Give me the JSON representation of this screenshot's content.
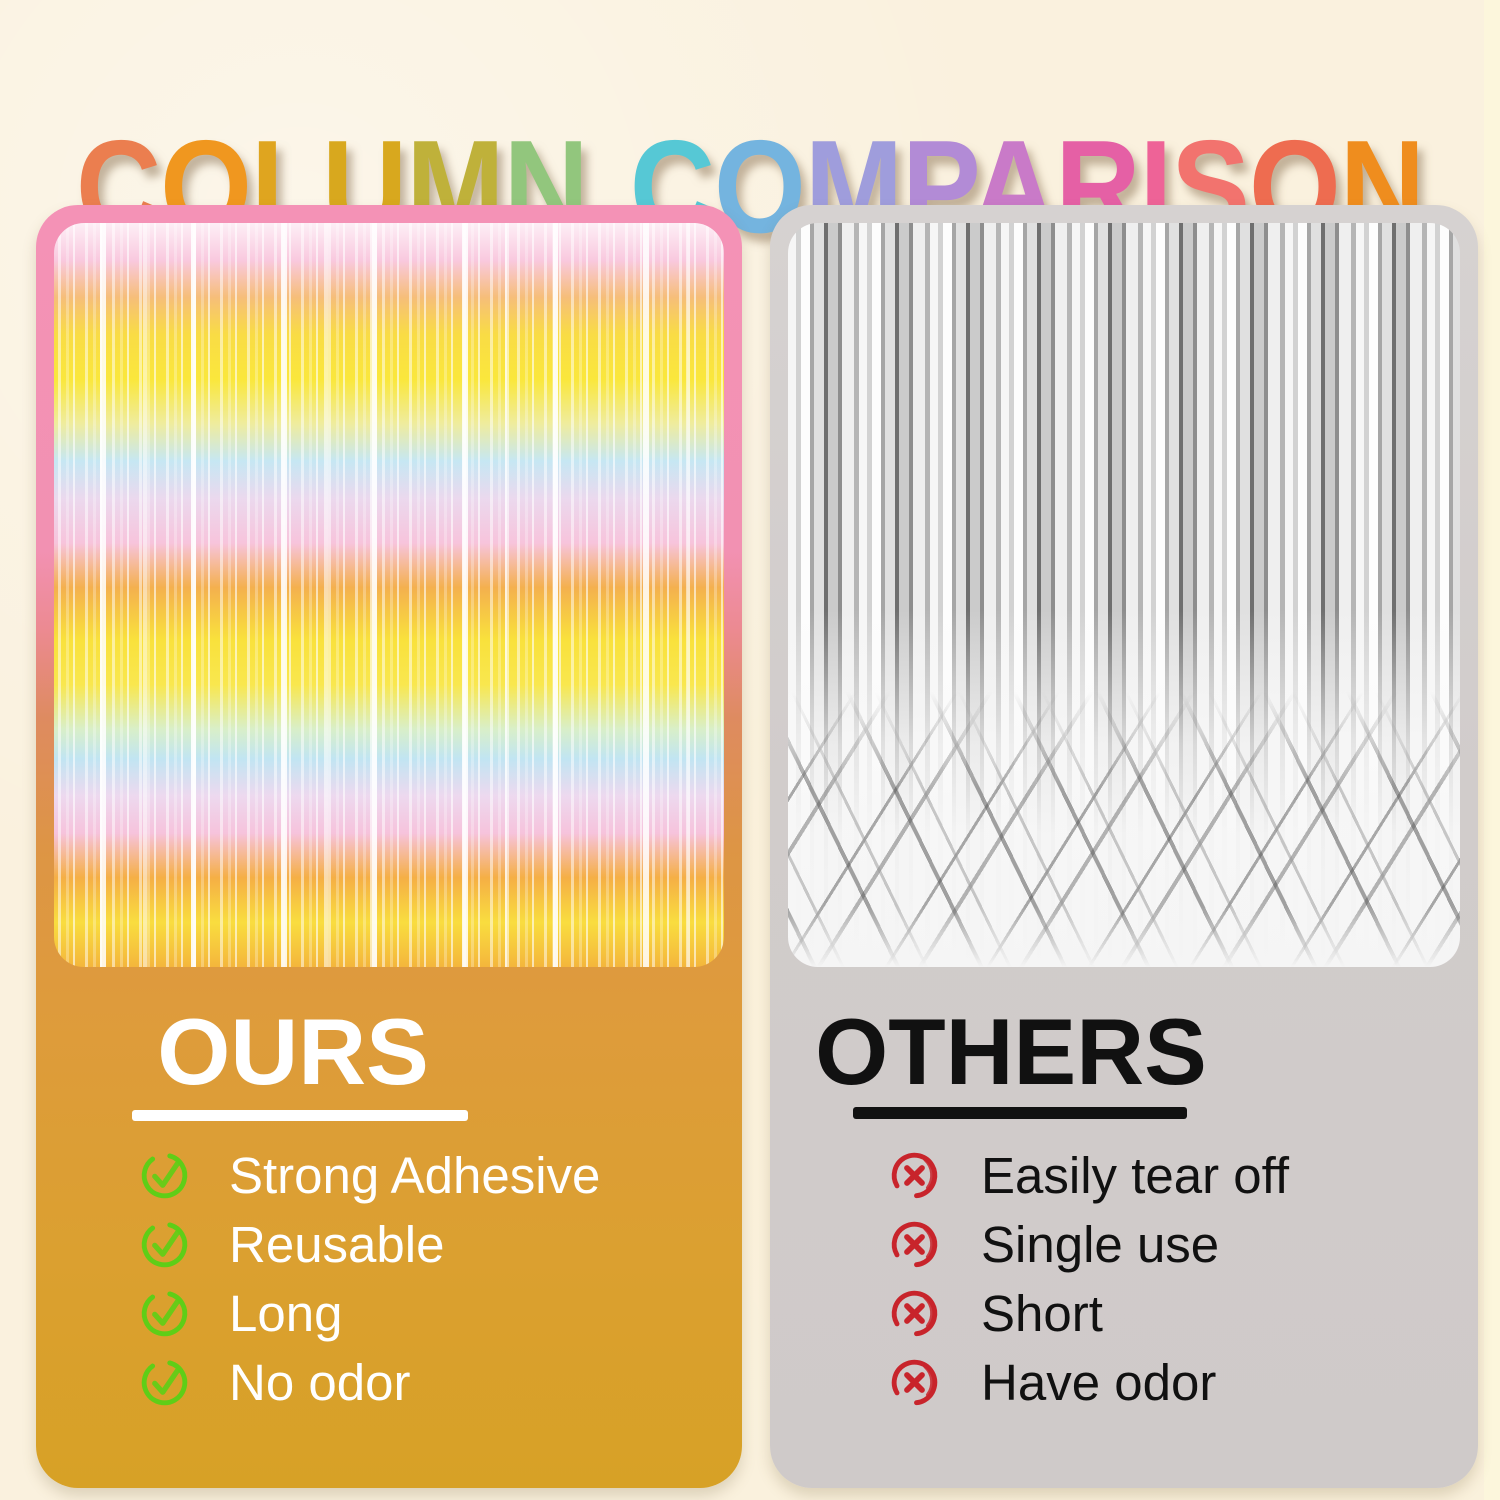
{
  "background_color": "#FAF1DE",
  "title": {
    "text": "COLUMN COMPARISON",
    "letters": [
      {
        "ch": "C",
        "color": "#EB7E4F"
      },
      {
        "ch": "O",
        "color": "#F0971F"
      },
      {
        "ch": "L",
        "color": "#DFA51F"
      },
      {
        "ch": "U",
        "color": "#D8A81E"
      },
      {
        "ch": "M",
        "color": "#BFB13A"
      },
      {
        "ch": "N",
        "color": "#92C67D"
      },
      {
        "ch": " ",
        "color": ""
      },
      {
        "ch": "C",
        "color": "#56C8D5"
      },
      {
        "ch": "O",
        "color": "#74B4DF"
      },
      {
        "ch": "M",
        "color": "#9F9DDC"
      },
      {
        "ch": "P",
        "color": "#B28BD6"
      },
      {
        "ch": "A",
        "color": "#C97AC8"
      },
      {
        "ch": "R",
        "color": "#E560A5"
      },
      {
        "ch": "I",
        "color": "#EE6397"
      },
      {
        "ch": "S",
        "color": "#F2736E"
      },
      {
        "ch": "O",
        "color": "#EE6C50"
      },
      {
        "ch": "N",
        "color": "#EF8D1E"
      }
    ]
  },
  "ours_panel": {
    "heading": "OURS",
    "heading_color": "#FFFFFF",
    "underline_color": "#FFFFFF",
    "text_color": "#FFFFFF",
    "frame_top_color": "#F492B6",
    "body_color": "#DD9B3C",
    "body_bottom_color": "#D7A126",
    "photo_name": "pastel-rainbow-fringe-curtain-photo",
    "item_icon": {
      "name": "check-circle-icon",
      "glyph": "✓",
      "color": "#5FCE17"
    },
    "items": [
      "Strong Adhesive",
      "Reusable",
      "Long",
      "No odor"
    ]
  },
  "others_panel": {
    "heading": "OTHERS",
    "heading_color": "#111111",
    "underline_color": "#111111",
    "text_color": "#111111",
    "body_color": "#D1CCCB",
    "photo_name": "silver-foil-fringe-curtain-photo",
    "item_icon": {
      "name": "cross-circle-icon",
      "glyph": "✕",
      "color": "#C8242B"
    },
    "items": [
      "Easily tear off",
      "Single use",
      "Short",
      "Have odor"
    ]
  }
}
